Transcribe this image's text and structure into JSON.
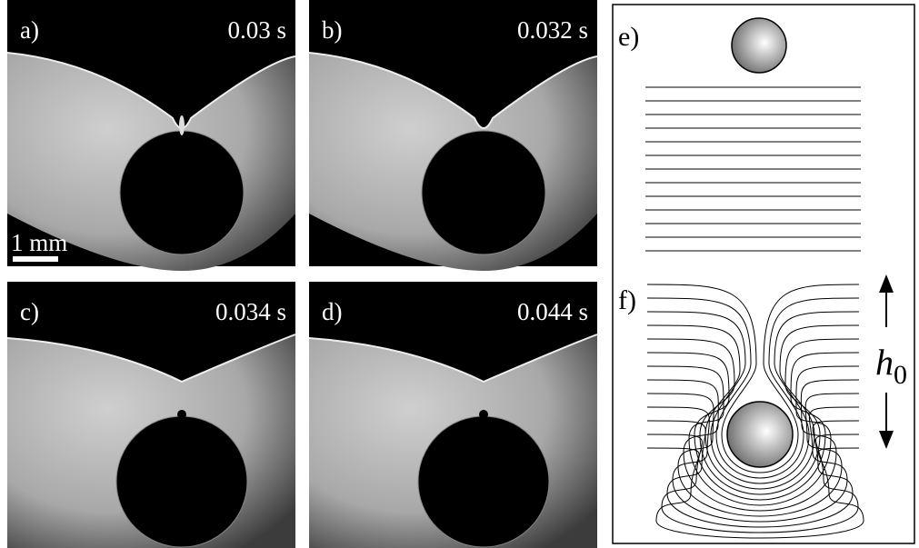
{
  "panels": [
    {
      "label": "a)",
      "time": "0.03 s"
    },
    {
      "label": "b)",
      "time": "0.032 s"
    },
    {
      "label": "c)",
      "time": "0.034 s"
    },
    {
      "label": "d)",
      "time": "0.044 s"
    }
  ],
  "scale_bar": "1 mm",
  "schematic": {
    "top_label": "e)",
    "bottom_label": "f)",
    "height_symbol": "h",
    "height_subscript": "0"
  }
}
